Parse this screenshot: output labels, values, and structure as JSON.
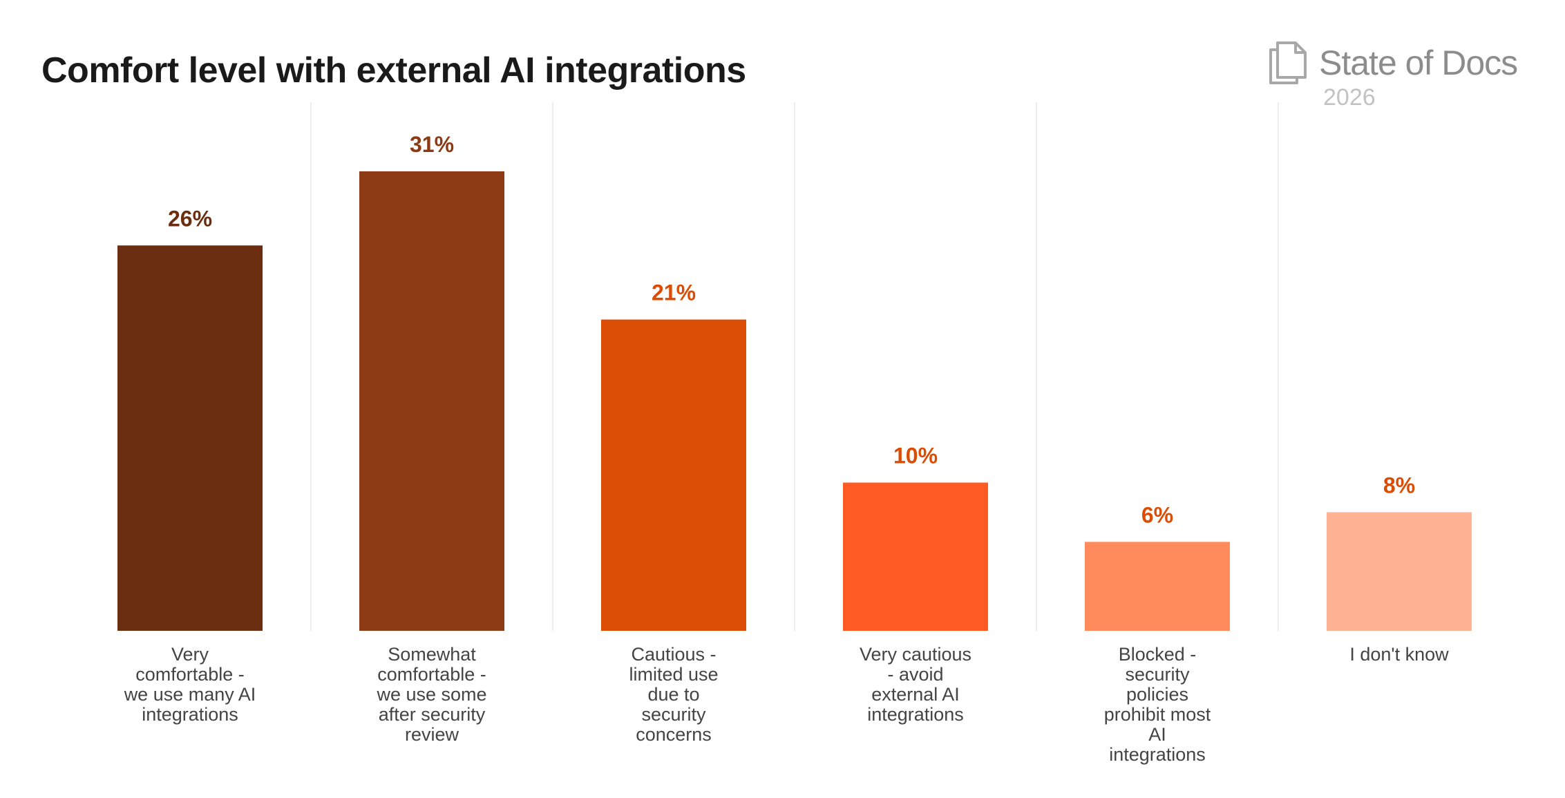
{
  "header": {
    "title": "Comfort level with external AI integrations"
  },
  "brand": {
    "name": "State of Docs",
    "year": "2026",
    "icon": "docs-stack-icon"
  },
  "chart_data": {
    "type": "bar",
    "title": "Comfort level with external AI integrations",
    "xlabel": "",
    "ylabel": "",
    "ylim": [
      0,
      35
    ],
    "grid": false,
    "categories": [
      "Very comfortable - we use many AI integrations",
      "Somewhat comfortable - we use some after security review",
      "Cautious - limited use due to security concerns",
      "Very cautious - avoid external AI integrations",
      "Blocked - security policies prohibit most AI integrations",
      "I don't know"
    ],
    "label_lines": [
      [
        "Very",
        "comfortable -",
        "we use many AI",
        "integrations"
      ],
      [
        "Somewhat",
        "comfortable -",
        "we use some",
        "after security",
        "review"
      ],
      [
        "Cautious -",
        "limited use",
        "due to",
        "security",
        "concerns"
      ],
      [
        "Very cautious",
        "- avoid",
        "external AI",
        "integrations"
      ],
      [
        "Blocked -",
        "security",
        "policies",
        "prohibit most",
        "AI",
        "integrations"
      ],
      [
        "I don't know"
      ]
    ],
    "values": [
      26,
      31,
      21,
      10,
      6,
      8
    ],
    "value_labels": [
      "26%",
      "31%",
      "21%",
      "10%",
      "6%",
      "8%"
    ],
    "colors": [
      "#6b2d0f",
      "#8b3a14",
      "#db4c04",
      "#ff5a23",
      "#ff8a5c",
      "#ffb193"
    ],
    "label_colors": [
      "#6b2d0f",
      "#8b3a14",
      "#db4c04",
      "#db4c04",
      "#db4c04",
      "#db4c04"
    ]
  }
}
